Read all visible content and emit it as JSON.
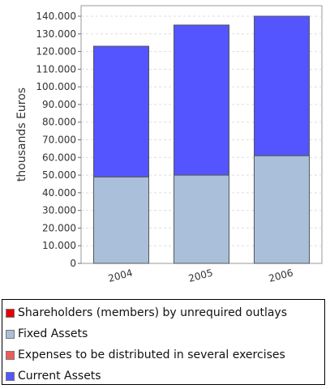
{
  "chart_data": {
    "type": "bar",
    "stacked": true,
    "categories": [
      "2004",
      "2005",
      "2006"
    ],
    "series": [
      {
        "name": "Shareholders (members) by unrequired outlays",
        "color": "#e60000",
        "values": [
          0,
          0,
          0
        ]
      },
      {
        "name": "Fixed Assets",
        "color": "#aabfd9",
        "values": [
          49000,
          50000,
          61000
        ]
      },
      {
        "name": "Expenses to be distributed in several exercises",
        "color": "#f05a5a",
        "values": [
          0,
          0,
          0
        ]
      },
      {
        "name": "Current Assets",
        "color": "#5555ff",
        "values": [
          74000,
          85000,
          79000
        ]
      }
    ],
    "ylabel": "thousands Euros",
    "ylim": [
      0,
      140000
    ],
    "yticks": [
      "0",
      "10.000",
      "20.000",
      "30.000",
      "40.000",
      "50.000",
      "60.000",
      "70.000",
      "80.000",
      "90.000",
      "100.000",
      "110.000",
      "120.000",
      "130.000",
      "140.000"
    ],
    "grid": true,
    "legend_position": "bottom"
  }
}
